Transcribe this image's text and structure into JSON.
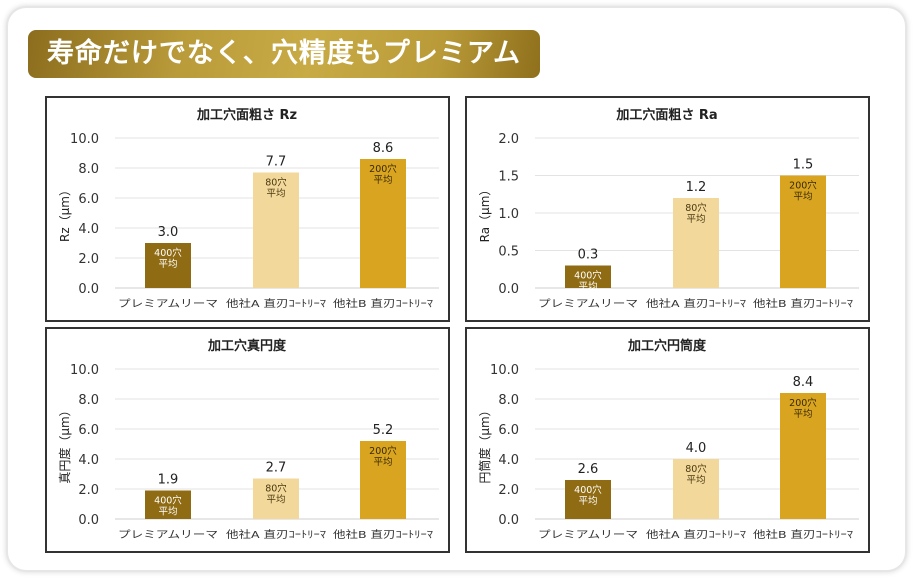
{
  "banner": {
    "title": "寿命だけでなく、穴精度もプレミアム"
  },
  "colors": {
    "premium": "#8f6b14",
    "companyA": "#f3d89c",
    "companyB": "#d9a521",
    "grid": "#e3e3e3"
  },
  "chart_data": [
    {
      "type": "bar",
      "title": "加工穴面粗さ Rz",
      "ylabel": "Rz（μm）",
      "ylim": [
        0,
        10
      ],
      "yticks": [
        "0.0",
        "2.0",
        "4.0",
        "6.0",
        "8.0",
        "10.0"
      ],
      "ytick_values": [
        0,
        2,
        4,
        6,
        8,
        10
      ],
      "categories": [
        "プレミアムリーマ",
        "他社A 直刃ｺｰﾄﾘｰﾏ",
        "他社B 直刃ｺｰﾄﾘｰﾏ"
      ],
      "values": [
        3.0,
        7.7,
        8.6
      ],
      "value_labels": [
        "3.0",
        "7.7",
        "8.6"
      ],
      "bar_notes": [
        [
          "400穴",
          "平均"
        ],
        [
          "80穴",
          "平均"
        ],
        [
          "200穴",
          "平均"
        ]
      ]
    },
    {
      "type": "bar",
      "title": "加工穴面粗さ Ra",
      "ylabel": "Ra（μm）",
      "ylim": [
        0,
        2
      ],
      "yticks": [
        "0.0",
        "0.5",
        "1.0",
        "1.5",
        "2.0"
      ],
      "ytick_values": [
        0,
        0.5,
        1,
        1.5,
        2
      ],
      "categories": [
        "プレミアムリーマ",
        "他社A 直刃ｺｰﾄﾘｰﾏ",
        "他社B 直刃ｺｰﾄﾘｰﾏ"
      ],
      "values": [
        0.3,
        1.2,
        1.5
      ],
      "value_labels": [
        "0.3",
        "1.2",
        "1.5"
      ],
      "bar_notes": [
        [
          "400穴",
          "平均"
        ],
        [
          "80穴",
          "平均"
        ],
        [
          "200穴",
          "平均"
        ]
      ]
    },
    {
      "type": "bar",
      "title": "加工穴真円度",
      "ylabel": "真円度（μm）",
      "ylim": [
        0,
        10
      ],
      "yticks": [
        "0.0",
        "2.0",
        "4.0",
        "6.0",
        "8.0",
        "10.0"
      ],
      "ytick_values": [
        0,
        2,
        4,
        6,
        8,
        10
      ],
      "categories": [
        "プレミアムリーマ",
        "他社A 直刃ｺｰﾄﾘｰﾏ",
        "他社B 直刃ｺｰﾄﾘｰﾏ"
      ],
      "values": [
        1.9,
        2.7,
        5.2
      ],
      "value_labels": [
        "1.9",
        "2.7",
        "5.2"
      ],
      "bar_notes": [
        [
          "400穴",
          "平均"
        ],
        [
          "80穴",
          "平均"
        ],
        [
          "200穴",
          "平均"
        ]
      ]
    },
    {
      "type": "bar",
      "title": "加工穴円筒度",
      "ylabel": "円筒度（μm）",
      "ylim": [
        0,
        10
      ],
      "yticks": [
        "0.0",
        "2.0",
        "4.0",
        "6.0",
        "8.0",
        "10.0"
      ],
      "ytick_values": [
        0,
        2,
        4,
        6,
        8,
        10
      ],
      "categories": [
        "プレミアムリーマ",
        "他社A 直刃ｺｰﾄﾘｰﾏ",
        "他社B 直刃ｺｰﾄﾘｰﾏ"
      ],
      "values": [
        2.6,
        4.0,
        8.4
      ],
      "value_labels": [
        "2.6",
        "4.0",
        "8.4"
      ],
      "bar_notes": [
        [
          "400穴",
          "平均"
        ],
        [
          "80穴",
          "平均"
        ],
        [
          "200穴",
          "平均"
        ]
      ]
    }
  ]
}
